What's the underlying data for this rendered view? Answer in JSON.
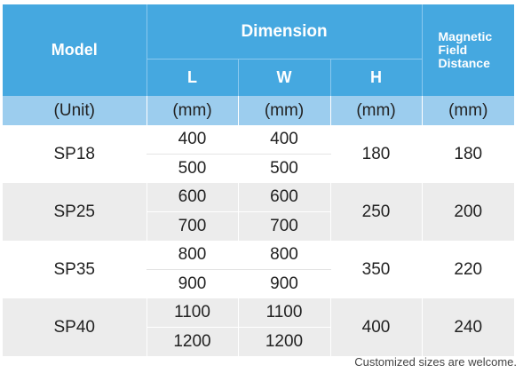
{
  "header": {
    "model": "Model",
    "dimension": "Dimension",
    "l": "L",
    "w": "W",
    "h": "H",
    "magnetic_line1": "Magnetic",
    "magnetic_line2": "Field",
    "magnetic_line3": "Distance"
  },
  "units": {
    "model": "(Unit)",
    "l": "(mm)",
    "w": "(mm)",
    "h": "(mm)",
    "magnetic": "(mm)"
  },
  "rows": [
    {
      "model": "SP18",
      "l": [
        "400",
        "500"
      ],
      "w": [
        "400",
        "500"
      ],
      "h": "180",
      "magnetic": "180"
    },
    {
      "model": "SP25",
      "l": [
        "600",
        "700"
      ],
      "w": [
        "600",
        "700"
      ],
      "h": "250",
      "magnetic": "200"
    },
    {
      "model": "SP35",
      "l": [
        "800",
        "900"
      ],
      "w": [
        "800",
        "900"
      ],
      "h": "350",
      "magnetic": "220"
    },
    {
      "model": "SP40",
      "l": [
        "1100",
        "1200"
      ],
      "w": [
        "1100",
        "1200"
      ],
      "h": "400",
      "magnetic": "240"
    }
  ],
  "footnote": "Customized sizes are welcome.",
  "colors": {
    "header_bg": "#45a8e0",
    "unit_row_bg": "#9ccdee",
    "alt_row_bg": "#ececec"
  }
}
